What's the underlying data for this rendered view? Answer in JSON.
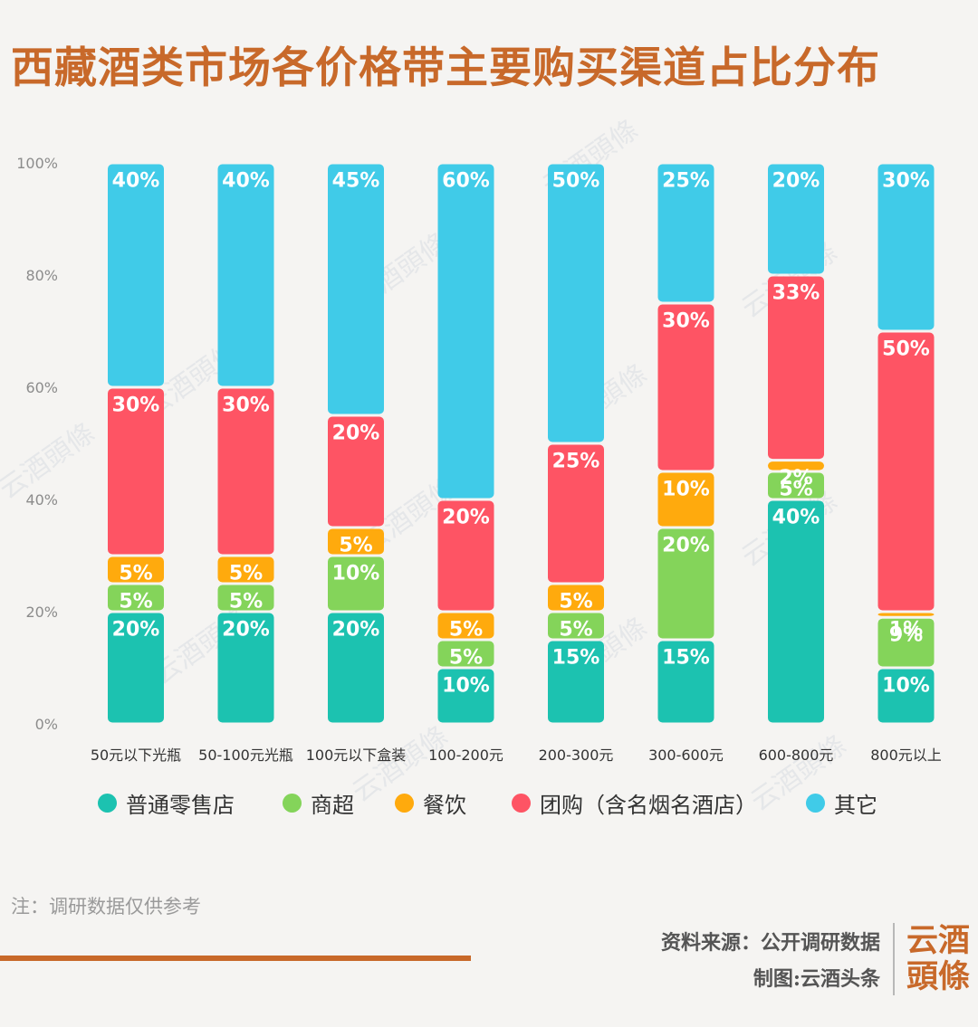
{
  "title": "西藏酒类市场各价格带主要购买渠道占比分布",
  "legend": [
    {
      "label": "普通零售店",
      "color": "#1cc2b0"
    },
    {
      "label": "商超",
      "color": "#84d45a"
    },
    {
      "label": "餐饮",
      "color": "#ffaa0d"
    },
    {
      "label": "团购（含名烟名酒店）",
      "color": "#fe5464"
    },
    {
      "label": "其它",
      "color": "#40cbe8"
    }
  ],
  "note": "注：调研数据仅供参考",
  "source": "资料来源：公开调研数据",
  "producer": "制图:云酒头条",
  "logo": {
    "line1": "云酒",
    "line2": "頭條"
  },
  "watermark_text": "云酒頭條",
  "chart_data": {
    "type": "bar",
    "stacked": true,
    "categories": [
      "50元以下光瓶",
      "50-100元光瓶",
      "100元以下盒装",
      "100-200元",
      "200-300元",
      "300-600元",
      "600-800元",
      "800元以上"
    ],
    "y_ticks": [
      "0%",
      "20%",
      "40%",
      "60%",
      "80%",
      "100%"
    ],
    "ylim": [
      0,
      100
    ],
    "series": [
      {
        "name": "普通零售店",
        "color": "#1cc2b0",
        "values": [
          20,
          20,
          20,
          10,
          15,
          15,
          40,
          10
        ],
        "labels": [
          "20%",
          "20%",
          "20%",
          "10%",
          "15%",
          "15%",
          "40%",
          "10%"
        ]
      },
      {
        "name": "商超",
        "color": "#84d45a",
        "values": [
          5,
          5,
          10,
          5,
          5,
          20,
          5,
          9
        ],
        "labels": [
          "5%",
          "5%",
          "10%",
          "5%",
          "5%",
          "20%",
          "5%",
          "9%"
        ]
      },
      {
        "name": "餐饮",
        "color": "#ffaa0d",
        "values": [
          5,
          5,
          5,
          5,
          5,
          10,
          2,
          1
        ],
        "labels": [
          "5%",
          "5%",
          "5%",
          "5%",
          "5%",
          "10%",
          "2%",
          "1%"
        ]
      },
      {
        "name": "团购（含名烟名酒店）",
        "color": "#fe5464",
        "values": [
          30,
          30,
          20,
          20,
          25,
          30,
          33,
          50
        ],
        "labels": [
          "30%",
          "30%",
          "20%",
          "20%",
          "25%",
          "30%",
          "33%",
          "50%"
        ]
      },
      {
        "name": "其它",
        "color": "#40cbe8",
        "values": [
          40,
          40,
          45,
          60,
          50,
          25,
          20,
          30
        ],
        "labels": [
          "40%",
          "40%",
          "45%",
          "60%",
          "50%",
          "25%",
          "20%",
          "30%"
        ]
      }
    ],
    "grid": false,
    "legend_position": "bottom"
  }
}
